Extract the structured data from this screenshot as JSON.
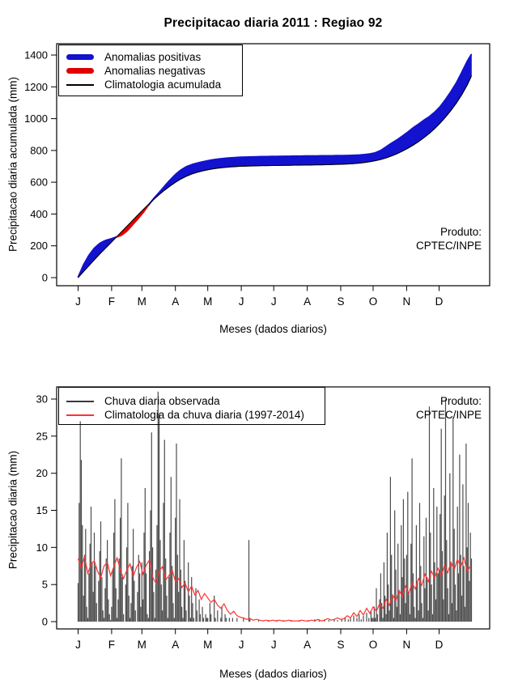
{
  "title": "Precipitacao diaria 2011 : Regiao 92",
  "months": [
    "J",
    "F",
    "M",
    "A",
    "M",
    "J",
    "J",
    "A",
    "S",
    "O",
    "N",
    "D"
  ],
  "producer": {
    "line1": "Produto:",
    "line2": "CPTEC/INPE"
  },
  "top_legend": [
    "Anomalias positivas",
    "Anomalias negativas",
    "Climatologia acumulada"
  ],
  "bottom_legend": [
    "Chuva diaria observada",
    "Climatologia da chuva diaria (1997-2014)"
  ],
  "colors": {
    "positive_blue": "#1212cf",
    "negative_red": "#e00000",
    "clim_black": "#000000",
    "bar_gray": "#4d4d4d",
    "clim_red": "#ff3232",
    "axis_black": "#000000"
  },
  "chart_data": [
    {
      "type": "area",
      "title": "Precipitacao diaria 2011 : Regiao 92",
      "xlabel": "Meses (dados diarios)",
      "ylabel": "Precipitacao diaria acumulada (mm)",
      "ylim": [
        0,
        1400
      ],
      "yticks": [
        0,
        200,
        400,
        600,
        800,
        1000,
        1200,
        1400
      ],
      "x_unit": "day_of_year_2011",
      "fill_rule": "blue where observado > climatologia (Anomalias positivas), red where observado < climatologia (Anomalias negativas)",
      "x_days": [
        1,
        6,
        11,
        16,
        21,
        26,
        31,
        36,
        41,
        46,
        51,
        56,
        61,
        66,
        71,
        76,
        81,
        86,
        91,
        96,
        101,
        106,
        111,
        116,
        121,
        126,
        131,
        136,
        141,
        146,
        151,
        156,
        161,
        166,
        171,
        176,
        181,
        186,
        191,
        196,
        201,
        206,
        211,
        216,
        221,
        226,
        231,
        236,
        241,
        246,
        251,
        256,
        261,
        266,
        271,
        276,
        281,
        286,
        291,
        296,
        301,
        306,
        311,
        316,
        321,
        326,
        331,
        336,
        341,
        346,
        351,
        356,
        361,
        365
      ],
      "series": [
        {
          "name": "Precipitacao acumulada observada 2011",
          "values": [
            2,
            80,
            140,
            185,
            215,
            233,
            243,
            254,
            266,
            292,
            330,
            368,
            408,
            455,
            498,
            535,
            575,
            613,
            648,
            676,
            697,
            710,
            720,
            728,
            735,
            741,
            746,
            750,
            753,
            755,
            757,
            758,
            759,
            760,
            761,
            761,
            762,
            762,
            763,
            763,
            764,
            764,
            765,
            765,
            765,
            766,
            766,
            766,
            767,
            767,
            768,
            769,
            771,
            774,
            778,
            785,
            800,
            822,
            845,
            866,
            890,
            915,
            942,
            965,
            990,
            1012,
            1040,
            1075,
            1120,
            1170,
            1225,
            1290,
            1360,
            1405
          ]
        },
        {
          "name": "Climatologia acumulada",
          "values": [
            0,
            38,
            75,
            112,
            148,
            183,
            217,
            252,
            287,
            322,
            357,
            392,
            426,
            460,
            492,
            522,
            550,
            576,
            599,
            620,
            637,
            651,
            662,
            671,
            678,
            684,
            689,
            693,
            696,
            698,
            700,
            701,
            702,
            703,
            704,
            704,
            705,
            705,
            706,
            706,
            707,
            707,
            708,
            708,
            709,
            709,
            710,
            711,
            712,
            713,
            715,
            717,
            720,
            724,
            729,
            735,
            743,
            753,
            765,
            779,
            795,
            813,
            833,
            855,
            880,
            907,
            937,
            972,
            1010,
            1052,
            1098,
            1150,
            1210,
            1268
          ]
        }
      ]
    },
    {
      "type": "bar",
      "xlabel": "Meses (dados diarios)",
      "ylabel": "Precipitacao diaria (mm)",
      "ylim": [
        0,
        30
      ],
      "yticks": [
        0,
        5,
        10,
        15,
        20,
        25,
        30
      ],
      "bars": {
        "name": "Chuva diaria observada",
        "x_unit": "day_of_year_2011",
        "values_daily": [
          5.2,
          16,
          27,
          21.8,
          13,
          3.5,
          9,
          12.5,
          2,
          0.5,
          6.5,
          10.5,
          15.5,
          8,
          4,
          12,
          7.5,
          2.5,
          0,
          5.5,
          9.5,
          13.5,
          6,
          1.5,
          0.5,
          4.5,
          8.5,
          11,
          3,
          1,
          0.2,
          2,
          7,
          12,
          16.5,
          4.5,
          0.5,
          3,
          8.5,
          14,
          22,
          6,
          1,
          0,
          5,
          10,
          16,
          3.5,
          0.5,
          2.5,
          7.5,
          12.5,
          5.5,
          1.5,
          0,
          4,
          9,
          6.5,
          2,
          8,
          3,
          12,
          18,
          6.5,
          1,
          0.5,
          9.5,
          15,
          25.5,
          10,
          4,
          0.5,
          7,
          13,
          31,
          28,
          11,
          5,
          1.5,
          16,
          24.5,
          8.5,
          3.5,
          0.5,
          6,
          12,
          19.5,
          7.5,
          2.5,
          0.5,
          14,
          24,
          9,
          4,
          16.5,
          7,
          2,
          0.5,
          11,
          5.5,
          1.5,
          0,
          8,
          3.5,
          0.5,
          6,
          2.5,
          0.5,
          0,
          4.5,
          1.5,
          0,
          3,
          1,
          0,
          2,
          0.5,
          0,
          1,
          0.5,
          0.5,
          0,
          2.5,
          1,
          0,
          0,
          3.5,
          0.5,
          0,
          1.5,
          0,
          0,
          0.5,
          2,
          0,
          0,
          1,
          0.5,
          0,
          0,
          0.5,
          0,
          0,
          0.5,
          0,
          0,
          0,
          0.5,
          0,
          0,
          0,
          0,
          0,
          0.5,
          0,
          0,
          0,
          0,
          11,
          0.5,
          0,
          0,
          0,
          0,
          0,
          0,
          0,
          0.2,
          0,
          0,
          0,
          0,
          0,
          0,
          0,
          0,
          0.2,
          0,
          0,
          0,
          0,
          0,
          0,
          0,
          0.2,
          0,
          0,
          0,
          0,
          0,
          0.2,
          0,
          0,
          0,
          0,
          0,
          0,
          0.2,
          0,
          0,
          0,
          0,
          0,
          0,
          0,
          0.2,
          0,
          0,
          0,
          0,
          0,
          0,
          0,
          0.2,
          0,
          0,
          0,
          0,
          0,
          0.3,
          0,
          0,
          0,
          0.2,
          0,
          0,
          0,
          0,
          0.3,
          0,
          0,
          0,
          0.2,
          0,
          0,
          0,
          0,
          0.3,
          0,
          0,
          0.2,
          0,
          0,
          0,
          0.3,
          0,
          0,
          0.5,
          0,
          0,
          0.3,
          0,
          0.5,
          0,
          0,
          0.8,
          0,
          0,
          0.5,
          0,
          1,
          0,
          0.3,
          0,
          0.8,
          0,
          0,
          1.2,
          0,
          0.5,
          0,
          1.5,
          0.5,
          0.5,
          2,
          0.5,
          4.5,
          1,
          0,
          3,
          6.5,
          2.5,
          0.5,
          8,
          3.5,
          1,
          12,
          5,
          1.5,
          19.5,
          9,
          3.5,
          0.5,
          15,
          7,
          2,
          10.5,
          4,
          1,
          13,
          6,
          16.5,
          8.5,
          2.5,
          9,
          17.5,
          4,
          1,
          10.5,
          22,
          6.5,
          2,
          0.5,
          13,
          5.5,
          1.5,
          16,
          7.5,
          2.5,
          0.5,
          11.5,
          4.5,
          14,
          6,
          1.5,
          29,
          12,
          5,
          1,
          18,
          8,
          3,
          15.5,
          6.5,
          7,
          14.5,
          26,
          9.5,
          3,
          17,
          30,
          11,
          4.5,
          1,
          20,
          8,
          2.5,
          27.5,
          12.5,
          5,
          1.5,
          15.5,
          6.5,
          22.5,
          9,
          3.5,
          18.5,
          7.5,
          2,
          24,
          10,
          16,
          5.5,
          12,
          8.5
        ]
      },
      "line": {
        "name": "Climatologia da chuva diaria (1997-2014)",
        "x_days_step": 3,
        "x_first_day": 1,
        "values": [
          8.5,
          7.2,
          8.8,
          6.5,
          7.8,
          8.2,
          6.8,
          5.9,
          7.5,
          8.0,
          6.2,
          7.4,
          8.6,
          7.0,
          5.8,
          6.9,
          7.8,
          6.1,
          7.3,
          8.1,
          6.4,
          7.6,
          8.3,
          6.0,
          5.2,
          6.8,
          7.4,
          5.6,
          6.2,
          7.0,
          5.4,
          5.8,
          4.6,
          5.2,
          4.0,
          4.8,
          3.6,
          4.2,
          3.0,
          3.8,
          3.2,
          2.6,
          3.0,
          2.2,
          1.8,
          2.4,
          1.5,
          1.0,
          1.4,
          0.8,
          0.6,
          0.5,
          0.3,
          0.4,
          0.2,
          0.3,
          0.2,
          0.1,
          0.2,
          0.1,
          0.2,
          0.1,
          0.2,
          0.1,
          0.1,
          0.2,
          0.1,
          0.1,
          0.1,
          0.2,
          0.1,
          0.1,
          0.2,
          0.1,
          0.3,
          0.1,
          0.2,
          0.4,
          0.2,
          0.3,
          0.5,
          0.3,
          0.4,
          0.8,
          0.5,
          1.2,
          0.7,
          1.5,
          0.9,
          1.8,
          1.1,
          2.0,
          1.4,
          2.4,
          1.8,
          3.0,
          2.2,
          3.6,
          2.8,
          4.2,
          3.4,
          4.8,
          3.8,
          5.2,
          4.4,
          5.8,
          4.9,
          6.4,
          5.4,
          6.8,
          5.9,
          7.2,
          6.2,
          7.6,
          6.6,
          8.0,
          7.0,
          8.4,
          7.4,
          8.6,
          6.8,
          7.5
        ]
      }
    }
  ]
}
